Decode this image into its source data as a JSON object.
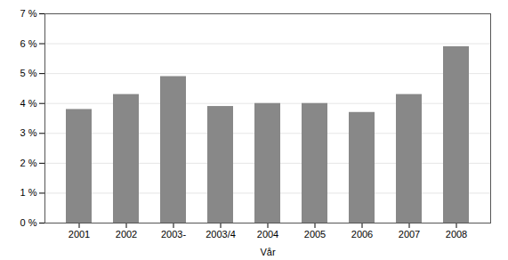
{
  "chart_data": {
    "type": "bar",
    "xlabel": "Vår",
    "categories": [
      "2001",
      "2002",
      "2003-",
      "2003/4",
      "2004",
      "2005",
      "2006",
      "2007",
      "2008"
    ],
    "values": [
      3.8,
      4.3,
      4.9,
      3.9,
      4.0,
      4.0,
      3.7,
      4.3,
      5.9
    ],
    "color": "#888888",
    "ylim": [
      0,
      7
    ],
    "yticks": [
      {
        "value": 0,
        "label": "0 %"
      },
      {
        "value": 1,
        "label": "1 %"
      },
      {
        "value": 2,
        "label": "2 %"
      },
      {
        "value": 3,
        "label": "3 %"
      },
      {
        "value": 4,
        "label": "4 %"
      },
      {
        "value": 5,
        "label": "5 %"
      },
      {
        "value": 6,
        "label": "6 %"
      },
      {
        "value": 7,
        "label": "7 %"
      }
    ],
    "grid": true
  }
}
